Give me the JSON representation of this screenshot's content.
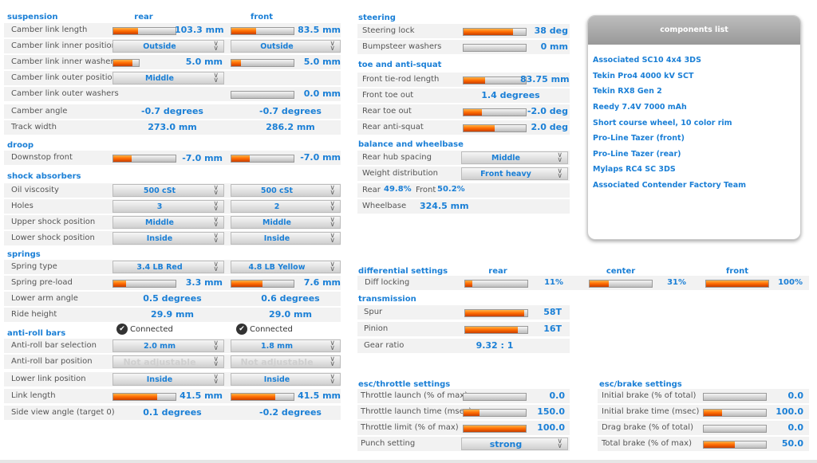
{
  "suspension": {
    "title": "suspension",
    "rear": "rear",
    "front": "front",
    "camber_link_length": {
      "label": "Camber link length",
      "rear": "103.3 mm",
      "front": "83.5 mm",
      "rear_level": 0.4,
      "front_level": 0.4
    },
    "camber_link_inner_position": {
      "label": "Camber link inner position",
      "rear": "Outside",
      "front": "Outside"
    },
    "camber_link_inner_washers": {
      "label": "Camber link inner washers",
      "rear": "5.0 mm",
      "front": "5.0 mm",
      "rear_level": 0.75,
      "front_level": 0.15
    },
    "camber_link_outer_position": {
      "label": "Camber link outer position",
      "rear": "Middle"
    },
    "camber_link_outer_washers": {
      "label": "Camber link outer washers",
      "front": "0.0 mm",
      "front_level": 0
    },
    "camber_angle": {
      "label": "Camber angle",
      "rear": "-0.7 degrees",
      "front": "-0.7 degrees"
    },
    "track_width": {
      "label": "Track width",
      "rear": "273.0 mm",
      "front": "286.2 mm"
    }
  },
  "droop": {
    "title": "droop",
    "downstop_front": {
      "label": "Downstop front",
      "rear": "-7.0 mm",
      "front": "-7.0 mm",
      "rear_level": 0.3,
      "front_level": 0.3
    }
  },
  "shock_absorbers": {
    "title": "shock absorbers",
    "oil_viscosity": {
      "label": "Oil viscosity",
      "rear": "500 cSt",
      "front": "500 cSt"
    },
    "holes": {
      "label": "Holes",
      "rear": "3",
      "front": "2"
    },
    "upper_shock_position": {
      "label": "Upper shock position",
      "rear": "Middle",
      "front": "Middle"
    },
    "lower_shock_position": {
      "label": "Lower shock position",
      "rear": "Inside",
      "front": "Inside"
    }
  },
  "springs": {
    "title": "springs",
    "spring_type": {
      "label": "Spring type",
      "rear": "3.4 LB Red",
      "front": "4.8 LB Yellow"
    },
    "spring_preload": {
      "label": "Spring pre-load",
      "rear": "3.3 mm",
      "front": "7.6 mm",
      "rear_level": 0.2,
      "front_level": 0.5
    },
    "lower_arm_angle": {
      "label": "Lower arm angle",
      "rear": "0.5 degrees",
      "front": "0.6 degrees"
    },
    "ride_height": {
      "label": "Ride height",
      "rear": "29.9 mm",
      "front": "29.0 mm"
    }
  },
  "anti_roll_bars": {
    "title": "anti-roll bars",
    "rear_status": "Connected",
    "front_status": "Connected",
    "selection": {
      "label": "Anti-roll bar selection",
      "rear": "2.0 mm",
      "front": "1.8 mm"
    },
    "position": {
      "label": "Anti-roll bar position",
      "rear": "Not adjustable",
      "front": "Not adjustable"
    },
    "lower_link_position": {
      "label": "Lower link position",
      "rear": "Inside",
      "front": "Inside"
    },
    "link_length": {
      "label": "Link length",
      "rear": "41.5 mm",
      "front": "41.5 mm",
      "rear_level": 0.7,
      "front_level": 0.7
    },
    "side_view_angle": {
      "label": "Side view angle (target 0)",
      "rear": "0.1 degrees",
      "front": "-0.2 degrees"
    }
  },
  "steering": {
    "title": "steering",
    "steering_lock": {
      "label": "Steering lock",
      "value": "38 deg",
      "level": 0.8
    },
    "bumpsteer_washers": {
      "label": "Bumpsteer washers",
      "value": "0 mm",
      "level": 0
    }
  },
  "toe": {
    "title": "toe and anti-squat",
    "front_tierod_length": {
      "label": "Front tie-rod length",
      "value": "83.75 mm",
      "level": 0.35
    },
    "front_toe_out": {
      "label": "Front toe out",
      "value": "1.4 degrees"
    },
    "rear_toe_out": {
      "label": "Rear toe out",
      "value": "-2.0 deg",
      "level": 0.3
    },
    "rear_anti_squat": {
      "label": "Rear anti-squat",
      "value": "2.0 deg",
      "level": 0.5
    }
  },
  "balance": {
    "title": "balance and wheelbase",
    "rear_hub_spacing": {
      "label": "Rear hub spacing",
      "value": "Middle"
    },
    "weight_distribution": {
      "label": "Weight distribution",
      "value": "Front heavy"
    },
    "rear_label": "Rear",
    "rear_value": "49.8%",
    "front_label": "Front",
    "front_value": "50.2%",
    "wheelbase": {
      "label": "Wheelbase",
      "value": "324.5 mm"
    }
  },
  "components": {
    "title": "components list",
    "items": [
      "Associated SC10 4x4 3DS",
      "Tekin Pro4 4000 kV SCT",
      "Tekin RX8 Gen 2",
      "Reedy 7.4V 7000 mAh",
      "Short course wheel, 10 color rim",
      "Pro-Line Tazer (front)",
      "Pro-Line Tazer (rear)",
      "Mylaps RC4 SC 3DS",
      "Associated Contender Factory Team"
    ]
  },
  "differential": {
    "title": "differential settings",
    "rear": "rear",
    "center": "center",
    "front": "front",
    "label": "Diff locking",
    "rear_value": "11%",
    "center_value": "31%",
    "front_value": "100%",
    "rear_level": 0.11,
    "center_level": 0.31,
    "front_level": 1.0
  },
  "transmission": {
    "title": "transmission",
    "spur": {
      "label": "Spur",
      "value": "58T",
      "level": 0.95
    },
    "pinion": {
      "label": "Pinion",
      "value": "16T",
      "level": 0.85
    },
    "gear_ratio": {
      "label": "Gear ratio",
      "value": "9.32 : 1"
    }
  },
  "esc_throttle": {
    "title": "esc/throttle settings",
    "launch": {
      "label": "Throttle launch (% of max)",
      "value": "0.0",
      "level": 0
    },
    "launch_time": {
      "label": "Throttle launch time (msec)",
      "value": "150.0",
      "level": 0.25
    },
    "limit": {
      "label": "Throttle limit (% of max)",
      "value": "100.0",
      "level": 1.0
    },
    "punch": {
      "label": "Punch setting",
      "value": "strong"
    }
  },
  "esc_brake": {
    "title": "esc/brake settings",
    "initial": {
      "label": "Initial brake (% of total)",
      "value": "0.0",
      "level": 0
    },
    "initial_time": {
      "label": "Initial brake time (msec)",
      "value": "100.0",
      "level": 0.3
    },
    "drag": {
      "label": "Drag brake (% of total)",
      "value": "0.0",
      "level": 0
    },
    "total": {
      "label": "Total brake (% of max)",
      "value": "50.0",
      "level": 0.5
    }
  },
  "colors": {
    "accent": "#1a7fd6",
    "fill": "#ff6a00"
  }
}
